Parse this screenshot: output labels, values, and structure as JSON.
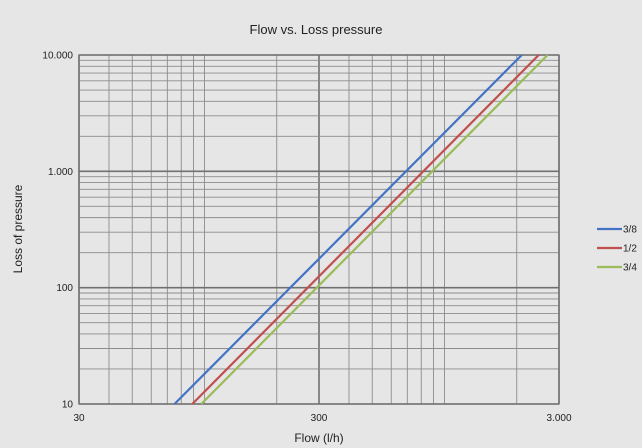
{
  "chart_data": {
    "type": "line",
    "title": "Flow vs. Loss pressure",
    "xlabel": "Flow (l/h)",
    "ylabel": "Loss of pressure",
    "xscale": "log",
    "yscale": "log",
    "xlim": [
      30,
      3000
    ],
    "ylim": [
      10,
      10000
    ],
    "xticks": [
      30,
      300,
      3000
    ],
    "xtick_labels": [
      "30",
      "300",
      "3.000"
    ],
    "yticks": [
      10,
      100,
      1000,
      10000
    ],
    "ytick_labels": [
      "10",
      "100",
      "1.000",
      "10.000"
    ],
    "grid": true,
    "legend_position": "right",
    "series": [
      {
        "name": "3/8",
        "color": "#4472c4",
        "x": [
          75,
          2100
        ],
        "y": [
          10,
          10000
        ]
      },
      {
        "name": "1/2",
        "color": "#c0504d",
        "x": [
          89,
          2470
        ],
        "y": [
          10,
          10000
        ]
      },
      {
        "name": "3/4",
        "color": "#9bbb59",
        "x": [
          97,
          2690
        ],
        "y": [
          10,
          10000
        ]
      }
    ]
  }
}
